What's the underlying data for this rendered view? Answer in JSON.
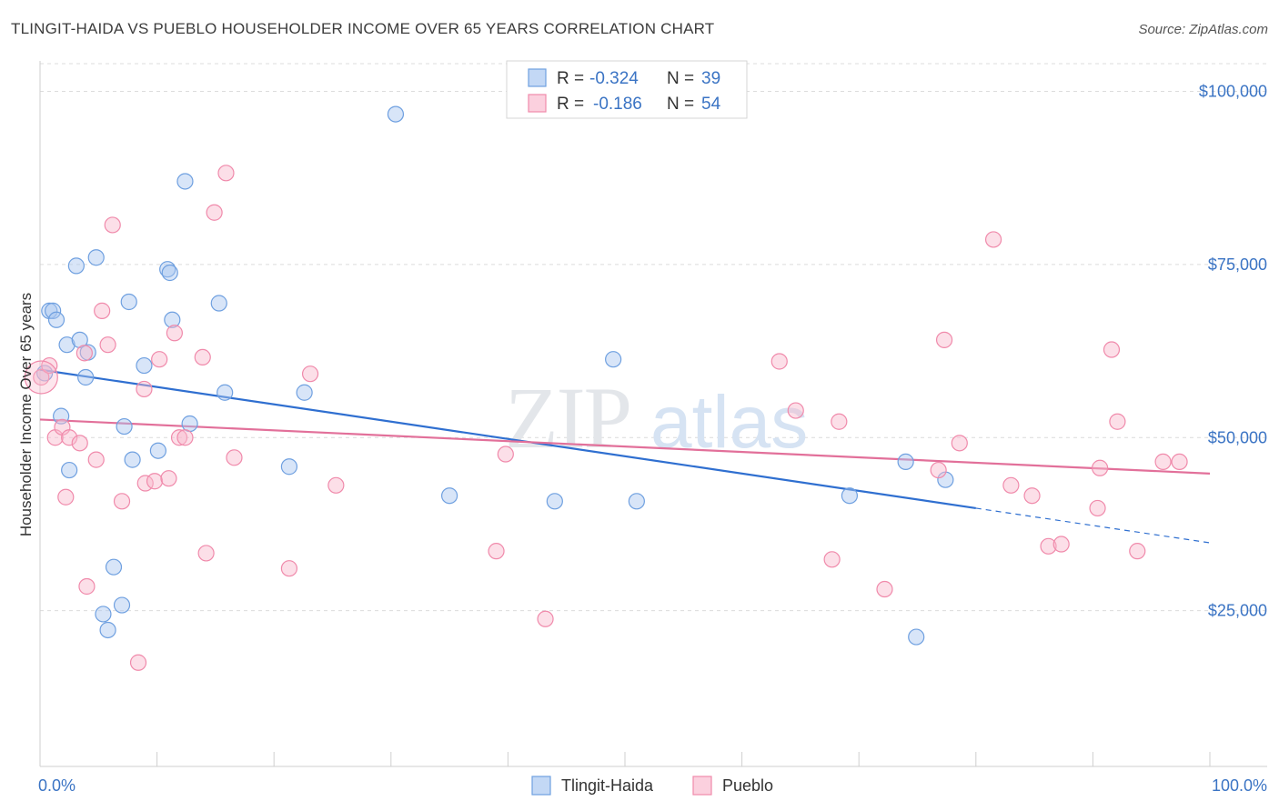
{
  "title": "TLINGIT-HAIDA VS PUEBLO HOUSEHOLDER INCOME OVER 65 YEARS CORRELATION CHART",
  "source": "Source: ZipAtlas.com",
  "watermark": {
    "zip": "ZIP",
    "atlas": "atlas"
  },
  "legend": {
    "rows": [
      {
        "r_label": "R =",
        "r_value": "-0.324",
        "n_label": "N =",
        "n_value": "39",
        "color": "#6fa0e0"
      },
      {
        "r_label": "R =",
        "r_value": "-0.186",
        "n_label": "N =",
        "n_value": "54",
        "color": "#f08aab"
      }
    ]
  },
  "bottom_legend": [
    "Tlingit-Haida",
    "Pueblo"
  ],
  "chart_data": {
    "type": "scatter",
    "title": "TLINGIT-HAIDA VS PUEBLO HOUSEHOLDER INCOME OVER 65 YEARS CORRELATION CHART",
    "xlabel": "",
    "ylabel": "Householder Income Over 65 years",
    "xlim": [
      0,
      100
    ],
    "ylim": [
      2500,
      104000
    ],
    "x_tick_labels": [
      "0.0%",
      "100.0%"
    ],
    "y_ticks": [
      25000,
      50000,
      75000,
      100000
    ],
    "y_tick_labels": [
      "$25,000",
      "$50,000",
      "$75,000",
      "$100,000"
    ],
    "grid": "horizontal dashed",
    "legend_position": "top-center",
    "series": [
      {
        "name": "Tlingit-Haida",
        "color": "#6fa0e0",
        "trend": {
          "x": [
            0,
            80
          ],
          "y": [
            59800,
            39800
          ],
          "dashed_to": [
            100,
            34800
          ]
        },
        "points": [
          [
            0.4,
            59300
          ],
          [
            0.8,
            68300
          ],
          [
            1.1,
            68300
          ],
          [
            1.4,
            67000
          ],
          [
            1.8,
            53100
          ],
          [
            2.3,
            63400
          ],
          [
            2.5,
            45300
          ],
          [
            3.1,
            74800
          ],
          [
            3.4,
            64100
          ],
          [
            3.9,
            58700
          ],
          [
            4.1,
            62300
          ],
          [
            4.8,
            76000
          ],
          [
            5.4,
            24500
          ],
          [
            5.8,
            22200
          ],
          [
            6.3,
            31300
          ],
          [
            7.0,
            25800
          ],
          [
            7.2,
            51600
          ],
          [
            7.6,
            69600
          ],
          [
            7.9,
            46800
          ],
          [
            8.9,
            60400
          ],
          [
            10.1,
            48100
          ],
          [
            10.9,
            74300
          ],
          [
            11.1,
            73800
          ],
          [
            11.3,
            67000
          ],
          [
            12.4,
            87000
          ],
          [
            12.8,
            52000
          ],
          [
            15.3,
            69400
          ],
          [
            15.8,
            56500
          ],
          [
            21.3,
            45800
          ],
          [
            22.6,
            56500
          ],
          [
            30.4,
            96700
          ],
          [
            35.0,
            41600
          ],
          [
            44.0,
            40800
          ],
          [
            49.0,
            61300
          ],
          [
            51.0,
            40800
          ],
          [
            69.2,
            41600
          ],
          [
            74.0,
            46500
          ],
          [
            74.9,
            21200
          ],
          [
            77.4,
            43900
          ]
        ]
      },
      {
        "name": "Pueblo",
        "color": "#f08aab",
        "trend": {
          "x": [
            0,
            100
          ],
          "y": [
            52600,
            44800
          ]
        },
        "points": [
          [
            0.1,
            58700
          ],
          [
            0.8,
            60400
          ],
          [
            1.3,
            50000
          ],
          [
            1.9,
            51500
          ],
          [
            2.2,
            41400
          ],
          [
            2.5,
            50000
          ],
          [
            3.4,
            49200
          ],
          [
            3.8,
            62200
          ],
          [
            4.0,
            28500
          ],
          [
            4.8,
            46800
          ],
          [
            5.3,
            68300
          ],
          [
            5.8,
            63400
          ],
          [
            6.2,
            80700
          ],
          [
            7.0,
            40800
          ],
          [
            8.4,
            17500
          ],
          [
            8.9,
            57000
          ],
          [
            9.0,
            43400
          ],
          [
            9.8,
            43700
          ],
          [
            10.2,
            61300
          ],
          [
            11.0,
            44100
          ],
          [
            11.5,
            65100
          ],
          [
            11.9,
            50000
          ],
          [
            12.4,
            50000
          ],
          [
            13.9,
            61600
          ],
          [
            14.2,
            33300
          ],
          [
            14.9,
            82500
          ],
          [
            15.9,
            88200
          ],
          [
            16.6,
            47100
          ],
          [
            21.3,
            31100
          ],
          [
            23.1,
            59200
          ],
          [
            25.3,
            43100
          ],
          [
            39.0,
            33600
          ],
          [
            39.8,
            47600
          ],
          [
            43.2,
            23800
          ],
          [
            63.2,
            61000
          ],
          [
            64.6,
            53900
          ],
          [
            67.7,
            32400
          ],
          [
            68.3,
            52300
          ],
          [
            72.2,
            28100
          ],
          [
            76.8,
            45300
          ],
          [
            77.3,
            64100
          ],
          [
            78.6,
            49200
          ],
          [
            81.5,
            78600
          ],
          [
            83.0,
            43100
          ],
          [
            84.8,
            41600
          ],
          [
            86.2,
            34300
          ],
          [
            87.3,
            34600
          ],
          [
            90.4,
            39800
          ],
          [
            90.6,
            45600
          ],
          [
            91.6,
            62700
          ],
          [
            92.1,
            52300
          ],
          [
            93.8,
            33600
          ],
          [
            96.0,
            46500
          ],
          [
            97.4,
            46500
          ]
        ]
      }
    ]
  }
}
